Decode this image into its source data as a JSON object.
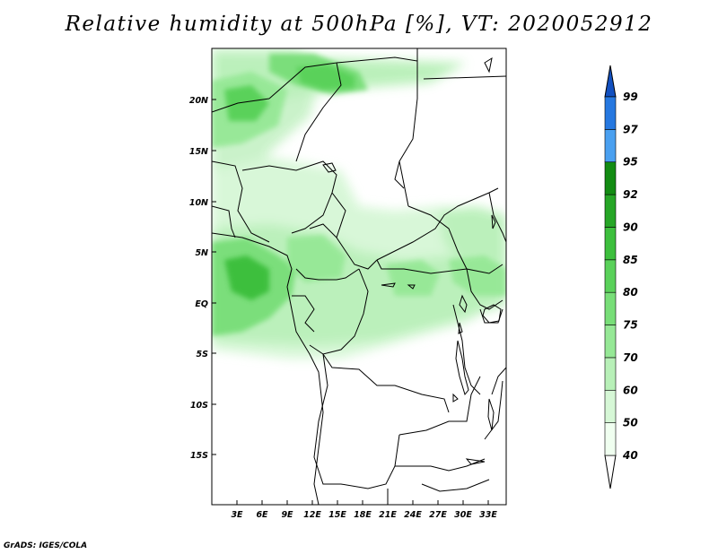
{
  "title": "Relative humidity at 500hPa [%], VT: 2020052912",
  "credit": "GrADS: IGES/COLA",
  "map": {
    "lon_ticks": [
      "3E",
      "6E",
      "9E",
      "12E",
      "15E",
      "18E",
      "21E",
      "24E",
      "27E",
      "30E",
      "33E"
    ],
    "lat_ticks": [
      "20N",
      "15N",
      "10N",
      "5N",
      "EQ",
      "5S",
      "10S",
      "15S"
    ],
    "lon_range_deg": [
      0,
      35
    ],
    "lat_range_deg": [
      -20,
      24
    ],
    "colors": {
      "40": "#f0fff0",
      "50": "#d6f7d6",
      "60": "#b8f0b8",
      "70": "#96e896",
      "75": "#78de78",
      "80": "#5ad15a",
      "85": "#3dbf3d",
      "90": "#26a626",
      "92": "#138c13",
      "95": "#4aa0f0",
      "97": "#2678e0",
      "99": "#1250c0"
    },
    "features": [
      "country-borders",
      "coastline",
      "lakes"
    ]
  },
  "colorbar": {
    "levels": [
      "40",
      "50",
      "60",
      "70",
      "75",
      "80",
      "85",
      "90",
      "92",
      "95",
      "97",
      "99"
    ],
    "colors": [
      "#f0fff0",
      "#d6f7d6",
      "#b8f0b8",
      "#96e896",
      "#78de78",
      "#5ad15a",
      "#3dbf3d",
      "#26a626",
      "#138c13",
      "#4aa0f0",
      "#2678e0",
      "#1250c0"
    ]
  }
}
